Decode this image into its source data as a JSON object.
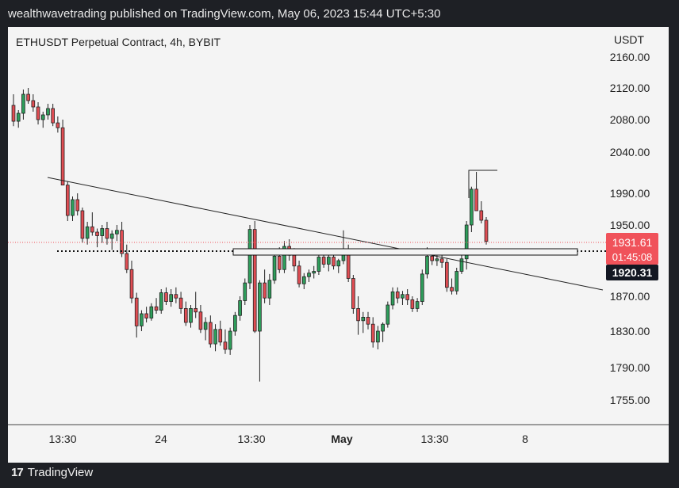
{
  "header": {
    "published": "wealthwavetrading published on TradingView.com, May 06, 2023 15:44 UTC+5:30"
  },
  "colors": {
    "up": "#2e9e5b",
    "down": "#e04d53",
    "price_badge": "#f0525a",
    "level_badge": "#131722"
  },
  "chart_data": {
    "type": "candlestick",
    "title": "ETHUSDT Perpetual Contract, 4h, BYBIT",
    "currency": "USDT",
    "y_ticks": [
      "2160.00",
      "2120.00",
      "2080.00",
      "2040.00",
      "1990.00",
      "1950.00",
      "1870.00",
      "1830.00",
      "1790.00",
      "1755.00"
    ],
    "x_ticks": [
      "13:30",
      "24",
      "13:30",
      "May",
      "13:30",
      "8"
    ],
    "current_price": "1931.61",
    "countdown": "01:45:08",
    "level_price": "1920.31",
    "candles": [
      [
        2098,
        2112,
        2072,
        2078
      ],
      [
        2078,
        2092,
        2070,
        2088
      ],
      [
        2088,
        2118,
        2080,
        2112
      ],
      [
        2112,
        2120,
        2100,
        2104
      ],
      [
        2104,
        2112,
        2090,
        2096
      ],
      [
        2096,
        2102,
        2074,
        2080
      ],
      [
        2080,
        2090,
        2070,
        2086
      ],
      [
        2086,
        2100,
        2080,
        2094
      ],
      [
        2094,
        2100,
        2072,
        2076
      ],
      [
        2076,
        2084,
        2064,
        2070
      ],
      [
        2070,
        2080,
        2000,
        2000
      ],
      [
        2000,
        2004,
        1955,
        1962
      ],
      [
        1962,
        1986,
        1955,
        1982
      ],
      [
        1982,
        1990,
        1962,
        1968
      ],
      [
        1968,
        1972,
        1930,
        1935
      ],
      [
        1935,
        1954,
        1928,
        1948
      ],
      [
        1948,
        1966,
        1938,
        1942
      ],
      [
        1942,
        1946,
        1925,
        1938
      ],
      [
        1938,
        1950,
        1930,
        1946
      ],
      [
        1946,
        1954,
        1928,
        1935
      ],
      [
        1935,
        1944,
        1922,
        1940
      ],
      [
        1940,
        1950,
        1932,
        1944
      ],
      [
        1944,
        1954,
        1914,
        1918
      ],
      [
        1918,
        1928,
        1896,
        1900
      ],
      [
        1900,
        1910,
        1862,
        1868
      ],
      [
        1868,
        1874,
        1823,
        1836
      ],
      [
        1836,
        1854,
        1830,
        1850
      ],
      [
        1850,
        1858,
        1840,
        1845
      ],
      [
        1845,
        1862,
        1842,
        1858
      ],
      [
        1858,
        1868,
        1850,
        1854
      ],
      [
        1854,
        1878,
        1850,
        1874
      ],
      [
        1874,
        1880,
        1860,
        1864
      ],
      [
        1864,
        1878,
        1858,
        1872
      ],
      [
        1872,
        1880,
        1862,
        1868
      ],
      [
        1868,
        1875,
        1850,
        1856
      ],
      [
        1856,
        1864,
        1836,
        1840
      ],
      [
        1840,
        1860,
        1834,
        1856
      ],
      [
        1856,
        1875,
        1845,
        1852
      ],
      [
        1852,
        1860,
        1828,
        1832
      ],
      [
        1832,
        1846,
        1820,
        1840
      ],
      [
        1840,
        1848,
        1812,
        1816
      ],
      [
        1816,
        1838,
        1808,
        1832
      ],
      [
        1832,
        1842,
        1814,
        1818
      ],
      [
        1818,
        1832,
        1805,
        1810
      ],
      [
        1810,
        1834,
        1804,
        1830
      ],
      [
        1830,
        1852,
        1825,
        1848
      ],
      [
        1848,
        1870,
        1842,
        1865
      ],
      [
        1865,
        1890,
        1860,
        1885
      ],
      [
        1885,
        1950,
        1878,
        1945
      ],
      [
        1945,
        1955,
        1828,
        1830
      ],
      [
        1830,
        1888,
        1775,
        1885
      ],
      [
        1885,
        1900,
        1862,
        1868
      ],
      [
        1868,
        1895,
        1860,
        1888
      ],
      [
        1888,
        1922,
        1884,
        1915
      ],
      [
        1915,
        1925,
        1896,
        1900
      ],
      [
        1900,
        1932,
        1896,
        1926
      ],
      [
        1926,
        1934,
        1910,
        1916
      ],
      [
        1916,
        1924,
        1898,
        1904
      ],
      [
        1904,
        1910,
        1880,
        1884
      ],
      [
        1884,
        1896,
        1878,
        1892
      ],
      [
        1892,
        1900,
        1886,
        1896
      ],
      [
        1896,
        1904,
        1890,
        1898
      ],
      [
        1898,
        1918,
        1894,
        1914
      ],
      [
        1914,
        1922,
        1902,
        1906
      ],
      [
        1906,
        1920,
        1898,
        1914
      ],
      [
        1914,
        1918,
        1900,
        1904
      ],
      [
        1904,
        1912,
        1896,
        1910
      ],
      [
        1910,
        1944,
        1906,
        1922
      ],
      [
        1922,
        1928,
        1886,
        1890
      ],
      [
        1890,
        1894,
        1850,
        1856
      ],
      [
        1856,
        1870,
        1826,
        1842
      ],
      [
        1842,
        1852,
        1828,
        1846
      ],
      [
        1846,
        1852,
        1832,
        1838
      ],
      [
        1838,
        1846,
        1812,
        1818
      ],
      [
        1818,
        1836,
        1810,
        1830
      ],
      [
        1830,
        1840,
        1818,
        1838
      ],
      [
        1838,
        1864,
        1834,
        1860
      ],
      [
        1860,
        1880,
        1855,
        1875
      ],
      [
        1875,
        1880,
        1862,
        1868
      ],
      [
        1868,
        1876,
        1860,
        1872
      ],
      [
        1872,
        1878,
        1860,
        1866
      ],
      [
        1866,
        1870,
        1852,
        1856
      ],
      [
        1856,
        1868,
        1852,
        1864
      ],
      [
        1864,
        1900,
        1860,
        1895
      ],
      [
        1895,
        1925,
        1890,
        1915
      ],
      [
        1915,
        1920,
        1905,
        1910
      ],
      [
        1910,
        1918,
        1904,
        1912
      ],
      [
        1912,
        1916,
        1902,
        1908
      ],
      [
        1908,
        1912,
        1875,
        1880
      ],
      [
        1880,
        1890,
        1872,
        1876
      ],
      [
        1876,
        1902,
        1872,
        1898
      ],
      [
        1898,
        1918,
        1895,
        1912
      ],
      [
        1912,
        1955,
        1900,
        1950
      ],
      [
        1950,
        1998,
        1942,
        1995
      ],
      [
        1995,
        2016,
        1968,
        1968
      ],
      [
        1968,
        1980,
        1952,
        1956
      ],
      [
        1956,
        1960,
        1928,
        1931.61
      ]
    ]
  }
}
